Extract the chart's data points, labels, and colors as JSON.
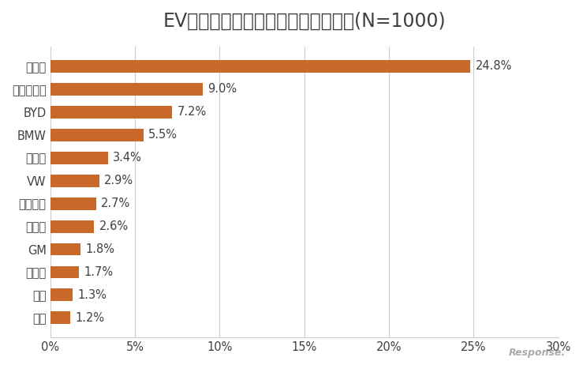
{
  "title": "EVで最も優れていると思うメーカー(N=1000)",
  "categories": [
    "三菱",
    "日産",
    "マツダ",
    "GM",
    "ホンダ",
    "フォード",
    "VW",
    "トヨタ",
    "BMW",
    "BYD",
    "北汽新能源",
    "テスラ"
  ],
  "values": [
    1.2,
    1.3,
    1.7,
    1.8,
    2.6,
    2.7,
    2.9,
    3.4,
    5.5,
    7.2,
    9.0,
    24.8
  ],
  "bar_color": "#C8692A",
  "label_color": "#404040",
  "background_color": "#ffffff",
  "title_fontsize": 17,
  "label_fontsize": 10.5,
  "tick_fontsize": 10.5,
  "xlim": [
    0,
    30
  ],
  "xticks": [
    0,
    5,
    10,
    15,
    20,
    25,
    30
  ],
  "xtick_labels": [
    "0%",
    "5%",
    "10%",
    "15%",
    "20%",
    "25%",
    "30%"
  ]
}
